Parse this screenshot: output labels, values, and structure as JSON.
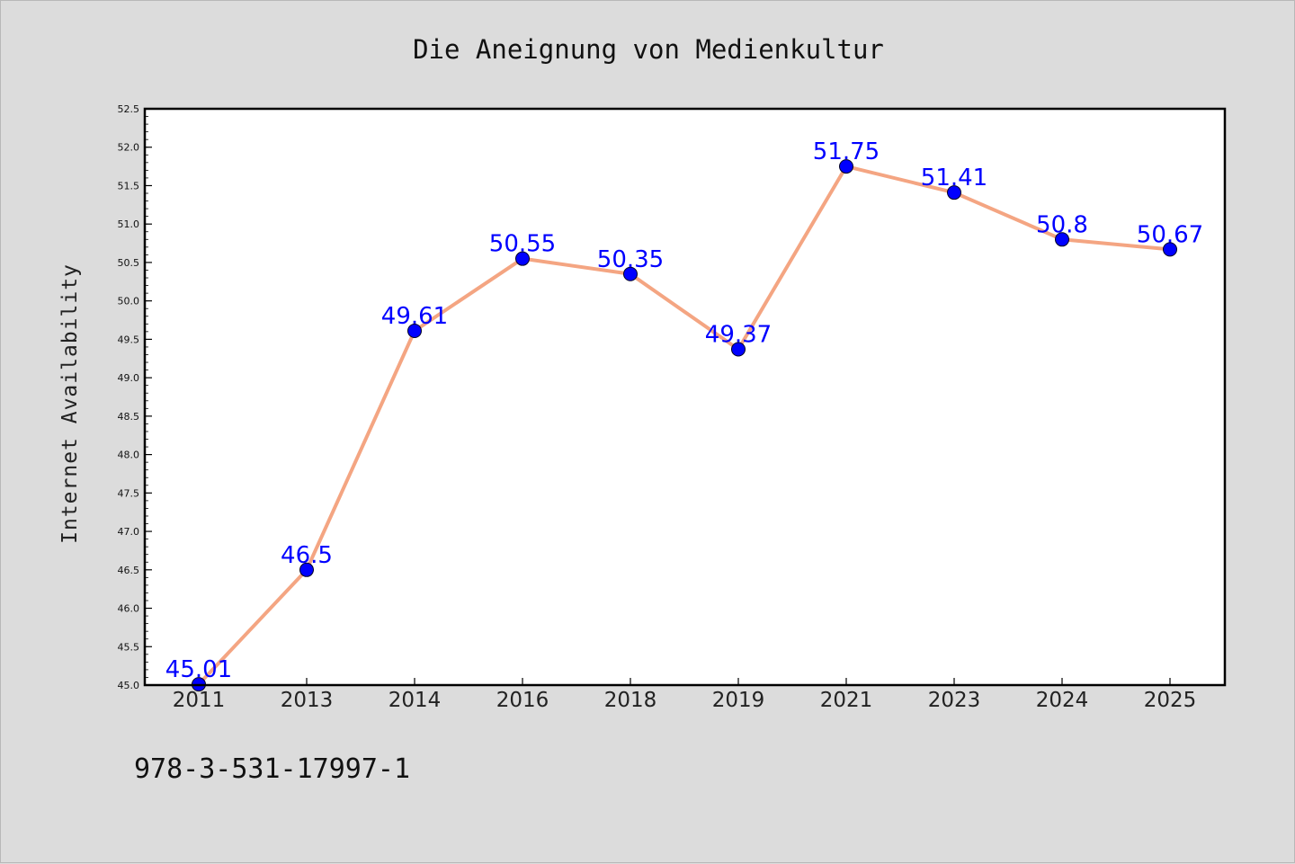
{
  "chart_data": {
    "type": "line",
    "title": "Die Aneignung von Medienkultur",
    "xlabel": "",
    "ylabel": "Internet Availability",
    "categories": [
      "2011",
      "2013",
      "2014",
      "2016",
      "2018",
      "2019",
      "2021",
      "2023",
      "2024",
      "2025"
    ],
    "series": [
      {
        "values": [
          45.01,
          46.5,
          49.61,
          50.55,
          50.35,
          49.37,
          51.75,
          51.41,
          50.8,
          50.67
        ],
        "labels": [
          "45.01",
          "46.5",
          "49.61",
          "50.55",
          "50.35",
          "49.37",
          "51.75",
          "51.41",
          "50.8",
          "50.67"
        ]
      }
    ],
    "ylim": [
      45.0,
      52.5
    ],
    "yticks": [
      "45.0",
      "45.5",
      "46.0",
      "46.5",
      "47.0",
      "47.5",
      "48.0",
      "48.5",
      "49.0",
      "49.5",
      "50.0",
      "50.5",
      "51.0",
      "51.5",
      "52.0",
      "52.5"
    ],
    "grid": false,
    "legend": "none",
    "colors": {
      "line": "#f4a582",
      "marker": "#0000ff",
      "label": "#0000ff",
      "background": "#dcdcdc",
      "plot_background": "#ffffff"
    }
  },
  "footer": {
    "isbn": "978-3-531-17997-1"
  }
}
